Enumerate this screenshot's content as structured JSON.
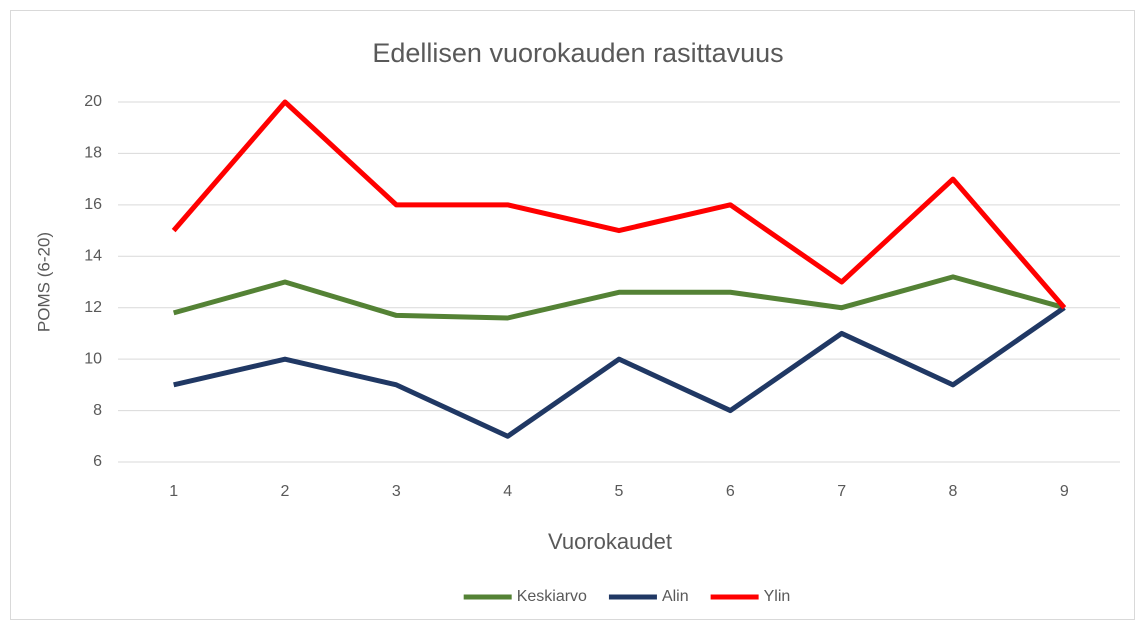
{
  "chart_data": {
    "type": "line",
    "title": "Edellisen vuorokauden rasittavuus",
    "x_label": "Vuorokaudet",
    "y_label": "POMS (6-20)",
    "categories": [
      "1",
      "2",
      "3",
      "4",
      "5",
      "6",
      "7",
      "8",
      "9"
    ],
    "series": [
      {
        "name": "Keskiarvo",
        "color": "#548235",
        "values": [
          11.8,
          13.0,
          11.7,
          11.6,
          12.6,
          12.6,
          12.0,
          13.2,
          12.0
        ]
      },
      {
        "name": "Alin",
        "color": "#203864",
        "values": [
          9,
          10,
          9,
          7,
          10,
          8,
          11,
          9,
          12
        ]
      },
      {
        "name": "Ylin",
        "color": "#ff0000",
        "values": [
          15,
          20,
          16,
          16,
          15,
          16,
          13,
          17,
          12
        ]
      }
    ],
    "ylim": [
      6,
      20
    ],
    "yticks": [
      6,
      8,
      10,
      12,
      14,
      16,
      18,
      20
    ],
    "grid": true,
    "legend": "bottom"
  }
}
